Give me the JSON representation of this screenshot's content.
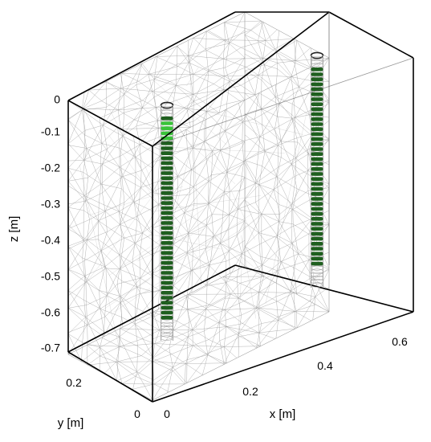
{
  "axes": {
    "x_label": "x [m]",
    "y_label": "y [m]",
    "z_label": "z [m]",
    "z_ticks": [
      "0",
      "-0.1",
      "-0.2",
      "-0.3",
      "-0.4",
      "-0.5",
      "-0.6",
      "-0.7"
    ],
    "x_ticks": [
      "0",
      "0.2",
      "0.4",
      "0.6"
    ],
    "y_ticks": [
      "0",
      "0.2"
    ]
  },
  "colors": {
    "frame": "#000000",
    "mesh": "#9a9a9a",
    "electrode_dark": "#1f5f1f",
    "electrode_bright": "#39c339",
    "casing": "#a8a8a8"
  }
}
